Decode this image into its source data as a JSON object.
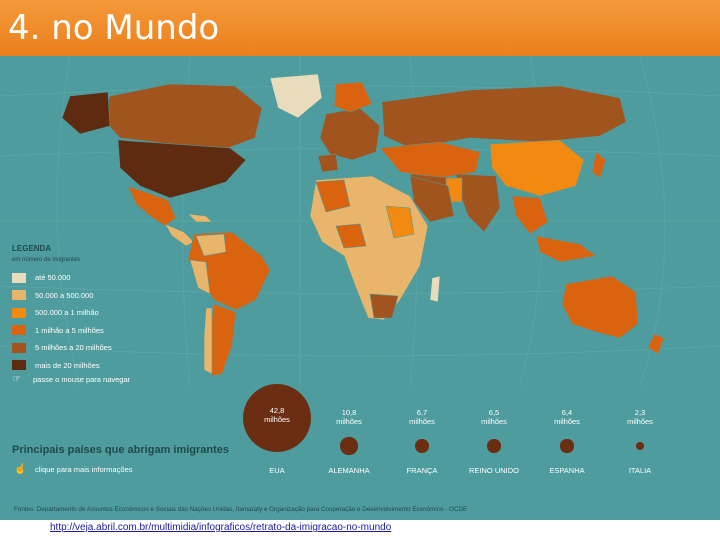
{
  "slide": {
    "title": "4. no Mundo"
  },
  "legend": {
    "title": "LEGENDA",
    "subtitle": "em número de imigrantes",
    "items": [
      {
        "label": "até 50.000",
        "color": "#e8dcbc"
      },
      {
        "label": "50.000 a 500.000",
        "color": "#e9b56a"
      },
      {
        "label": "500.000 a 1 milhão",
        "color": "#f28a12"
      },
      {
        "label": "1 milhão a 5 milhões",
        "color": "#d9630f"
      },
      {
        "label": "5 milhões a 20 milhões",
        "color": "#a1541e"
      },
      {
        "label": "mais de 20 milhões",
        "color": "#5e2b10"
      }
    ],
    "hint": "passe o mouse para navegar"
  },
  "countries": {
    "title": "Principais países que abrigam imigrantes",
    "hint": "clique para mais informações",
    "items": [
      {
        "value_line1": "42,8",
        "value_line2": "milhões",
        "name": "EUA",
        "value": 42.8
      },
      {
        "value_line1": "10,8",
        "value_line2": "milhões",
        "name": "ALEMANHA",
        "value": 10.8
      },
      {
        "value_line1": "6,7",
        "value_line2": "milhões",
        "name": "FRANÇA",
        "value": 6.7
      },
      {
        "value_line1": "6,5",
        "value_line2": "milhões",
        "name": "REINO UNIDO",
        "value": 6.5
      },
      {
        "value_line1": "6,4",
        "value_line2": "milhões",
        "name": "ESPANHA",
        "value": 6.4
      },
      {
        "value_line1": "2,3",
        "value_line2": "milhões",
        "name": "ITALIA",
        "value": 2.3
      }
    ]
  },
  "source": "Fontes: Departamento de Assuntos Econômicos e Sociais das Nações Unidas, Itamaraty e Organização para Cooperação e Desenvolvimento Econômico - OCDE",
  "link": {
    "url": "http://veja.abril.com.br/multimidia/infograficos/retrato-da-imigracao-no-mundo"
  },
  "colors": {
    "ocean": "#4f9c9e",
    "title_bar": "#ec7f1c",
    "bubble": "#6b2e12"
  }
}
